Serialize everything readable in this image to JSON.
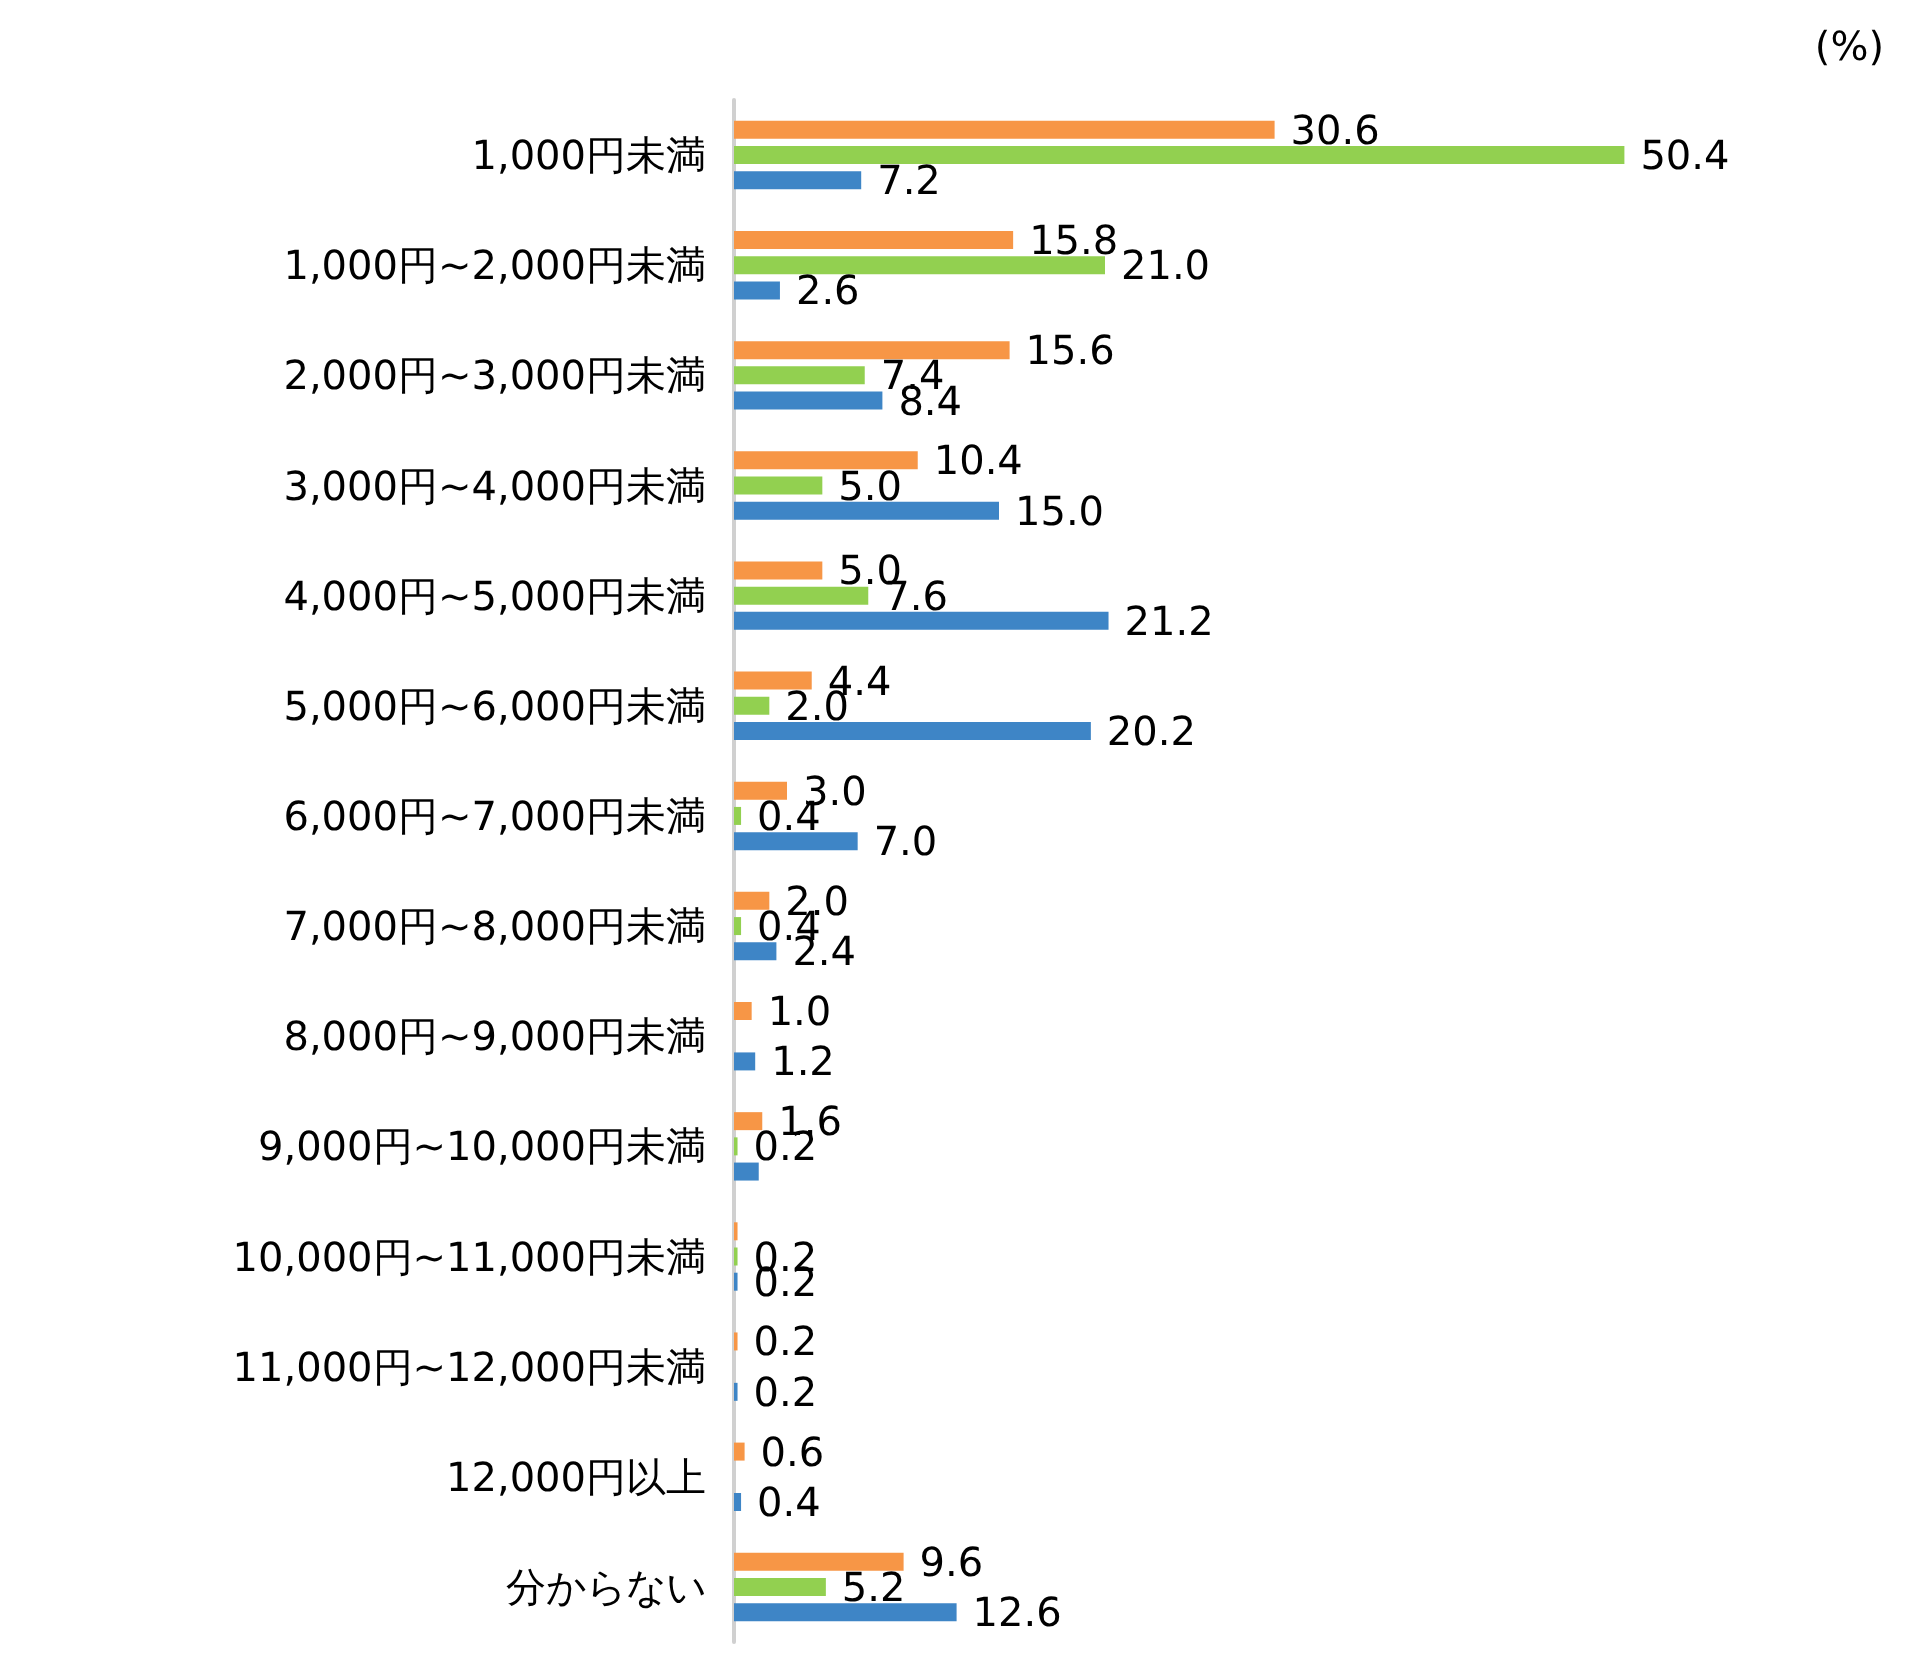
{
  "chart_data": {
    "type": "bar",
    "orientation": "horizontal",
    "annotations": [
      "(%)"
    ],
    "tick_labels": "y",
    "categories": [
      "1,000円未満",
      "1,000円~2,000円未満",
      "2,000円~3,000円未満",
      "3,000円~4,000円未満",
      "4,000円~5,000円未満",
      "5,000円~6,000円未満",
      "6,000円~7,000円未満",
      "7,000円~8,000円未満",
      "8,000円~9,000円未満",
      "9,000円~10,000円未満",
      "10,000円~11,000円未満",
      "11,000円~12,000円未満",
      "12,000円以上",
      "分からない"
    ],
    "series": [
      {
        "color": "#f79646",
        "values": [
          30.6,
          15.8,
          15.6,
          10.4,
          5.0,
          4.4,
          3.0,
          2.0,
          1.0,
          1.6,
          0.2,
          0.2,
          0.6,
          9.6
        ],
        "value_labels": [
          "30.6",
          "15.8",
          "15.6",
          "10.4",
          "5.0",
          "4.4",
          "3.0",
          "2.0",
          "1.0",
          "1.6",
          null,
          "0.2",
          "0.6",
          "9.6"
        ]
      },
      {
        "color": "#92d050",
        "values": [
          50.4,
          21.0,
          7.4,
          5.0,
          7.6,
          2.0,
          0.4,
          0.4,
          0,
          0.2,
          0.2,
          0,
          0,
          5.2
        ],
        "value_labels": [
          "50.4",
          "21.0",
          "7.4",
          "5.0",
          "7.6",
          "2.0",
          "0.4",
          "0.4",
          null,
          "0.2",
          "0.2",
          null,
          null,
          "5.2"
        ]
      },
      {
        "color": "#3e85c6",
        "values": [
          7.2,
          2.6,
          8.4,
          15.0,
          21.2,
          20.2,
          7.0,
          2.4,
          1.2,
          1.4,
          0.2,
          0.2,
          0.4,
          12.6
        ],
        "value_labels": [
          "7.2",
          "2.6",
          "8.4",
          "15.0",
          "21.2",
          "20.2",
          "7.0",
          "2.4",
          "1.2",
          null,
          "0.2",
          "0.2",
          "0.4",
          "12.6"
        ]
      }
    ]
  }
}
